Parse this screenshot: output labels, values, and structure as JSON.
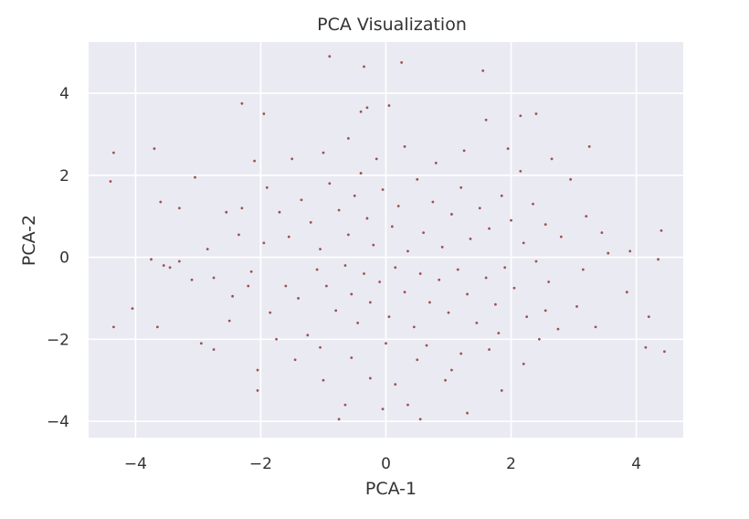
{
  "chart_data": {
    "type": "scatter",
    "title": "PCA Visualization",
    "xlabel": "PCA-1",
    "ylabel": "PCA-2",
    "xlim": [
      -4.75,
      4.75
    ],
    "ylim": [
      -4.4,
      5.25
    ],
    "xticks": [
      -4,
      -2,
      0,
      2,
      4
    ],
    "xtick_labels": [
      "−4",
      "−2",
      "0",
      "2",
      "4"
    ],
    "yticks": [
      -4,
      -2,
      0,
      2,
      4
    ],
    "ytick_labels": [
      "−4",
      "−2",
      "0",
      "2",
      "4"
    ],
    "grid": true,
    "style": "seaborn-darkgrid",
    "series": [
      {
        "marker_color": "#a05050",
        "points": [
          [
            -0.9,
            4.9
          ],
          [
            -0.35,
            4.65
          ],
          [
            0.25,
            4.75
          ],
          [
            1.55,
            4.55
          ],
          [
            -2.3,
            3.75
          ],
          [
            -1.95,
            3.5
          ],
          [
            -0.4,
            3.55
          ],
          [
            -0.3,
            3.65
          ],
          [
            0.05,
            3.7
          ],
          [
            2.15,
            3.45
          ],
          [
            2.4,
            3.5
          ],
          [
            1.6,
            3.35
          ],
          [
            -4.35,
            2.55
          ],
          [
            -3.7,
            2.65
          ],
          [
            -3.05,
            1.95
          ],
          [
            -3.3,
            1.2
          ],
          [
            -3.6,
            1.35
          ],
          [
            -4.4,
            1.85
          ],
          [
            -4.05,
            -1.25
          ],
          [
            -4.35,
            -1.7
          ],
          [
            -3.65,
            -1.7
          ],
          [
            -3.3,
            -0.1
          ],
          [
            -3.55,
            -0.2
          ],
          [
            -3.75,
            -0.05
          ],
          [
            -2.95,
            -2.1
          ],
          [
            -2.75,
            -2.25
          ],
          [
            -2.05,
            -2.75
          ],
          [
            -2.05,
            -3.25
          ],
          [
            4.4,
            0.65
          ],
          [
            4.45,
            -2.3
          ],
          [
            4.2,
            -1.45
          ],
          [
            4.15,
            -2.2
          ],
          [
            4.35,
            -0.05
          ],
          [
            3.9,
            0.15
          ],
          [
            3.85,
            -0.85
          ],
          [
            3.55,
            0.1
          ],
          [
            3.25,
            2.7
          ],
          [
            2.95,
            1.9
          ],
          [
            2.65,
            2.4
          ],
          [
            3.2,
            1.0
          ],
          [
            3.05,
            -1.2
          ],
          [
            2.55,
            -1.3
          ],
          [
            2.2,
            -2.6
          ],
          [
            1.85,
            -3.25
          ],
          [
            1.3,
            -3.8
          ],
          [
            0.55,
            -3.95
          ],
          [
            0.35,
            -3.6
          ],
          [
            -0.05,
            -3.7
          ],
          [
            -0.75,
            -3.95
          ],
          [
            -0.65,
            -3.6
          ],
          [
            0.15,
            -3.1
          ],
          [
            0.95,
            -3.0
          ],
          [
            1.05,
            -2.75
          ],
          [
            -1.45,
            -2.5
          ],
          [
            -1.0,
            -3.0
          ],
          [
            -0.25,
            -2.95
          ],
          [
            0.5,
            -2.5
          ],
          [
            1.65,
            -2.25
          ],
          [
            2.75,
            -1.75
          ],
          [
            -2.55,
            1.1
          ],
          [
            -2.3,
            1.2
          ],
          [
            -2.75,
            -0.5
          ],
          [
            -2.45,
            -0.95
          ],
          [
            -2.5,
            -1.55
          ],
          [
            -2.15,
            -0.35
          ],
          [
            -1.95,
            0.35
          ],
          [
            -1.85,
            -1.35
          ],
          [
            -1.6,
            -0.7
          ],
          [
            -1.4,
            -1.0
          ],
          [
            -1.25,
            -1.9
          ],
          [
            -1.1,
            -0.3
          ],
          [
            -0.95,
            -0.7
          ],
          [
            -0.8,
            -1.3
          ],
          [
            -0.65,
            -0.2
          ],
          [
            -0.55,
            -0.9
          ],
          [
            -0.45,
            -1.6
          ],
          [
            -0.35,
            -0.4
          ],
          [
            -0.25,
            -1.1
          ],
          [
            -0.1,
            -0.6
          ],
          [
            0.05,
            -1.45
          ],
          [
            0.15,
            -0.25
          ],
          [
            0.3,
            -0.85
          ],
          [
            0.45,
            -1.7
          ],
          [
            0.55,
            -0.4
          ],
          [
            0.7,
            -1.1
          ],
          [
            0.85,
            -0.55
          ],
          [
            1.0,
            -1.35
          ],
          [
            1.15,
            -0.3
          ],
          [
            1.3,
            -0.9
          ],
          [
            1.45,
            -1.6
          ],
          [
            1.6,
            -0.5
          ],
          [
            1.75,
            -1.15
          ],
          [
            1.9,
            -0.25
          ],
          [
            2.05,
            -0.75
          ],
          [
            2.25,
            -1.45
          ],
          [
            2.4,
            -0.1
          ],
          [
            2.6,
            -0.6
          ],
          [
            -1.9,
            1.7
          ],
          [
            -1.7,
            1.1
          ],
          [
            -1.55,
            0.5
          ],
          [
            -1.35,
            1.4
          ],
          [
            -1.2,
            0.85
          ],
          [
            -1.05,
            0.2
          ],
          [
            -0.9,
            1.8
          ],
          [
            -0.75,
            1.15
          ],
          [
            -0.6,
            0.55
          ],
          [
            -0.5,
            1.5
          ],
          [
            -0.4,
            2.05
          ],
          [
            -0.3,
            0.95
          ],
          [
            -0.2,
            0.3
          ],
          [
            -0.05,
            1.65
          ],
          [
            0.1,
            0.75
          ],
          [
            0.2,
            1.25
          ],
          [
            0.35,
            0.15
          ],
          [
            0.5,
            1.9
          ],
          [
            0.6,
            0.6
          ],
          [
            0.75,
            1.35
          ],
          [
            0.9,
            0.25
          ],
          [
            1.05,
            1.05
          ],
          [
            1.2,
            1.7
          ],
          [
            1.35,
            0.45
          ],
          [
            1.5,
            1.2
          ],
          [
            1.65,
            0.7
          ],
          [
            1.85,
            1.5
          ],
          [
            2.0,
            0.9
          ],
          [
            2.2,
            0.35
          ],
          [
            2.35,
            1.3
          ],
          [
            2.55,
            0.8
          ],
          [
            2.8,
            0.5
          ],
          [
            -1.5,
            2.4
          ],
          [
            -1.0,
            2.55
          ],
          [
            -0.6,
            2.9
          ],
          [
            -0.15,
            2.4
          ],
          [
            0.3,
            2.7
          ],
          [
            0.8,
            2.3
          ],
          [
            1.25,
            2.6
          ],
          [
            1.95,
            2.65
          ],
          [
            2.15,
            2.1
          ],
          [
            -2.1,
            2.35
          ],
          [
            -2.35,
            0.55
          ],
          [
            -2.2,
            -0.7
          ],
          [
            -1.75,
            -2.0
          ],
          [
            -1.05,
            -2.2
          ],
          [
            -0.55,
            -2.45
          ],
          [
            0.0,
            -2.1
          ],
          [
            0.65,
            -2.15
          ],
          [
            1.2,
            -2.35
          ],
          [
            1.8,
            -1.85
          ],
          [
            2.45,
            -2.0
          ],
          [
            -3.45,
            -0.25
          ],
          [
            -3.1,
            -0.55
          ],
          [
            -2.85,
            0.2
          ],
          [
            3.15,
            -0.3
          ],
          [
            3.45,
            0.6
          ],
          [
            3.35,
            -1.7
          ]
        ]
      }
    ]
  }
}
